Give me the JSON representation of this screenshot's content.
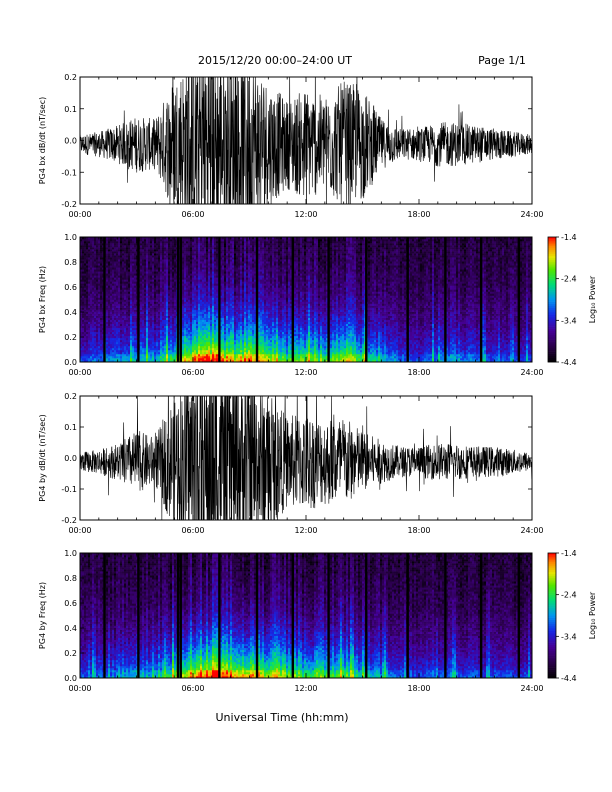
{
  "header": {
    "title": "2015/12/20  00:00–24:00 UT",
    "page": "Page 1/1"
  },
  "x_axis": {
    "label": "Universal Time (hh:mm)",
    "ticks": [
      "00:00",
      "06:00",
      "12:00",
      "18:00",
      "24:00"
    ],
    "range_hours": [
      0,
      24
    ]
  },
  "colorbar": {
    "label": "Log₁₀ Power",
    "ticks": [
      "-1.4",
      "-2.4",
      "-3.4",
      "-4.4"
    ],
    "range": [
      -4.4,
      -1.4
    ]
  },
  "chart_data": [
    {
      "type": "line",
      "ylabel": "PG4 bx dB/dt (nT/sec)",
      "ylim": [
        -0.2,
        0.2
      ],
      "yticks": [
        -0.2,
        -0.1,
        0.0,
        0.1,
        0.2
      ],
      "ytick_labels": [
        "-0.2",
        "-0.1",
        "0.0",
        "0.1",
        "0.2"
      ],
      "x": [
        0,
        1,
        2,
        3,
        4,
        5,
        6,
        7,
        8,
        9,
        10,
        11,
        12,
        13,
        14,
        15,
        16,
        17,
        18,
        19,
        20,
        21,
        22,
        23,
        24
      ],
      "envelope": [
        0.03,
        0.04,
        0.06,
        0.09,
        0.08,
        0.22,
        0.3,
        0.35,
        0.25,
        0.3,
        0.2,
        0.14,
        0.18,
        0.15,
        0.2,
        0.18,
        0.08,
        0.05,
        0.05,
        0.07,
        0.07,
        0.06,
        0.05,
        0.04,
        0.03
      ]
    },
    {
      "type": "heatmap",
      "ylabel": "PG4 bx Freq (Hz)",
      "ylim": [
        0.0,
        1.0
      ],
      "yticks": [
        0.0,
        0.2,
        0.4,
        0.6,
        0.8,
        1.0
      ],
      "ytick_labels": [
        "0.0",
        "0.2",
        "0.4",
        "0.6",
        "0.8",
        "1.0"
      ],
      "x": [
        0,
        1,
        2,
        3,
        4,
        5,
        6,
        7,
        8,
        9,
        10,
        11,
        12,
        13,
        14,
        15,
        16,
        17,
        18,
        19,
        20,
        21,
        22,
        23,
        24
      ],
      "activity": [
        0.3,
        0.35,
        0.4,
        0.45,
        0.45,
        0.6,
        0.8,
        0.9,
        0.75,
        0.8,
        0.7,
        0.6,
        0.65,
        0.6,
        0.7,
        0.6,
        0.45,
        0.35,
        0.3,
        0.4,
        0.4,
        0.35,
        0.3,
        0.3,
        0.3
      ],
      "data_gaps_hours": [
        1.3,
        3.1,
        5.2,
        5.35,
        7.4,
        9.4,
        11.3,
        13.2,
        15.2,
        17.4,
        19.4,
        21.3,
        23.3
      ]
    },
    {
      "type": "line",
      "ylabel": "PG4 by dB/dt (nT/sec)",
      "ylim": [
        -0.2,
        0.2
      ],
      "yticks": [
        -0.2,
        -0.1,
        0.0,
        0.1,
        0.2
      ],
      "ytick_labels": [
        "-0.2",
        "-0.1",
        "0.0",
        "0.1",
        "0.2"
      ],
      "x": [
        0,
        1,
        2,
        3,
        4,
        5,
        6,
        7,
        8,
        9,
        10,
        11,
        12,
        13,
        14,
        15,
        16,
        17,
        18,
        19,
        20,
        21,
        22,
        23,
        24
      ],
      "envelope": [
        0.03,
        0.04,
        0.06,
        0.1,
        0.08,
        0.22,
        0.3,
        0.35,
        0.28,
        0.3,
        0.22,
        0.15,
        0.16,
        0.14,
        0.15,
        0.1,
        0.07,
        0.05,
        0.05,
        0.06,
        0.06,
        0.05,
        0.05,
        0.04,
        0.03
      ]
    },
    {
      "type": "heatmap",
      "ylabel": "PG4 by Freq (Hz)",
      "ylim": [
        0.0,
        1.0
      ],
      "yticks": [
        0.0,
        0.2,
        0.4,
        0.6,
        0.8,
        1.0
      ],
      "ytick_labels": [
        "0.0",
        "0.2",
        "0.4",
        "0.6",
        "0.8",
        "1.0"
      ],
      "x": [
        0,
        1,
        2,
        3,
        4,
        5,
        6,
        7,
        8,
        9,
        10,
        11,
        12,
        13,
        14,
        15,
        16,
        17,
        18,
        19,
        20,
        21,
        22,
        23,
        24
      ],
      "activity": [
        0.3,
        0.35,
        0.4,
        0.45,
        0.45,
        0.6,
        0.8,
        0.9,
        0.78,
        0.8,
        0.72,
        0.62,
        0.6,
        0.6,
        0.6,
        0.5,
        0.42,
        0.35,
        0.3,
        0.35,
        0.35,
        0.32,
        0.3,
        0.3,
        0.3
      ],
      "data_gaps_hours": [
        1.3,
        3.1,
        5.2,
        5.35,
        7.4,
        9.4,
        11.3,
        13.2,
        15.2,
        17.4,
        19.4,
        21.3,
        23.3
      ]
    }
  ]
}
